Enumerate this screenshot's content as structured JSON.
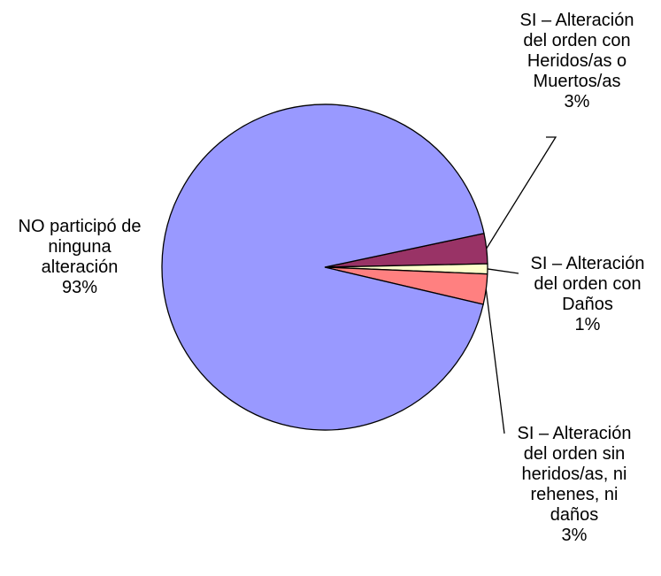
{
  "chart_data": {
    "type": "pie",
    "title": "",
    "slices": [
      {
        "label_lines": [
          "SI – Alteración",
          "del orden con",
          "Heridos/as o",
          "Muertos/as"
        ],
        "value": 3,
        "value_label": "3%",
        "color": "#993366"
      },
      {
        "label_lines": [
          "SI – Alteración",
          "del orden con",
          "Daños"
        ],
        "value": 1,
        "value_label": "1%",
        "color": "#FFFFCC"
      },
      {
        "label_lines": [
          "SI – Alteración",
          "del orden sin",
          "heridos/as, ni",
          "rehenes, ni",
          "daños"
        ],
        "value": 3,
        "value_label": "3%",
        "color": "#FF8080"
      },
      {
        "label_lines": [
          "NO participó de",
          "ninguna",
          "alteración"
        ],
        "value": 93,
        "value_label": "93%",
        "color": "#9999FF"
      }
    ]
  }
}
